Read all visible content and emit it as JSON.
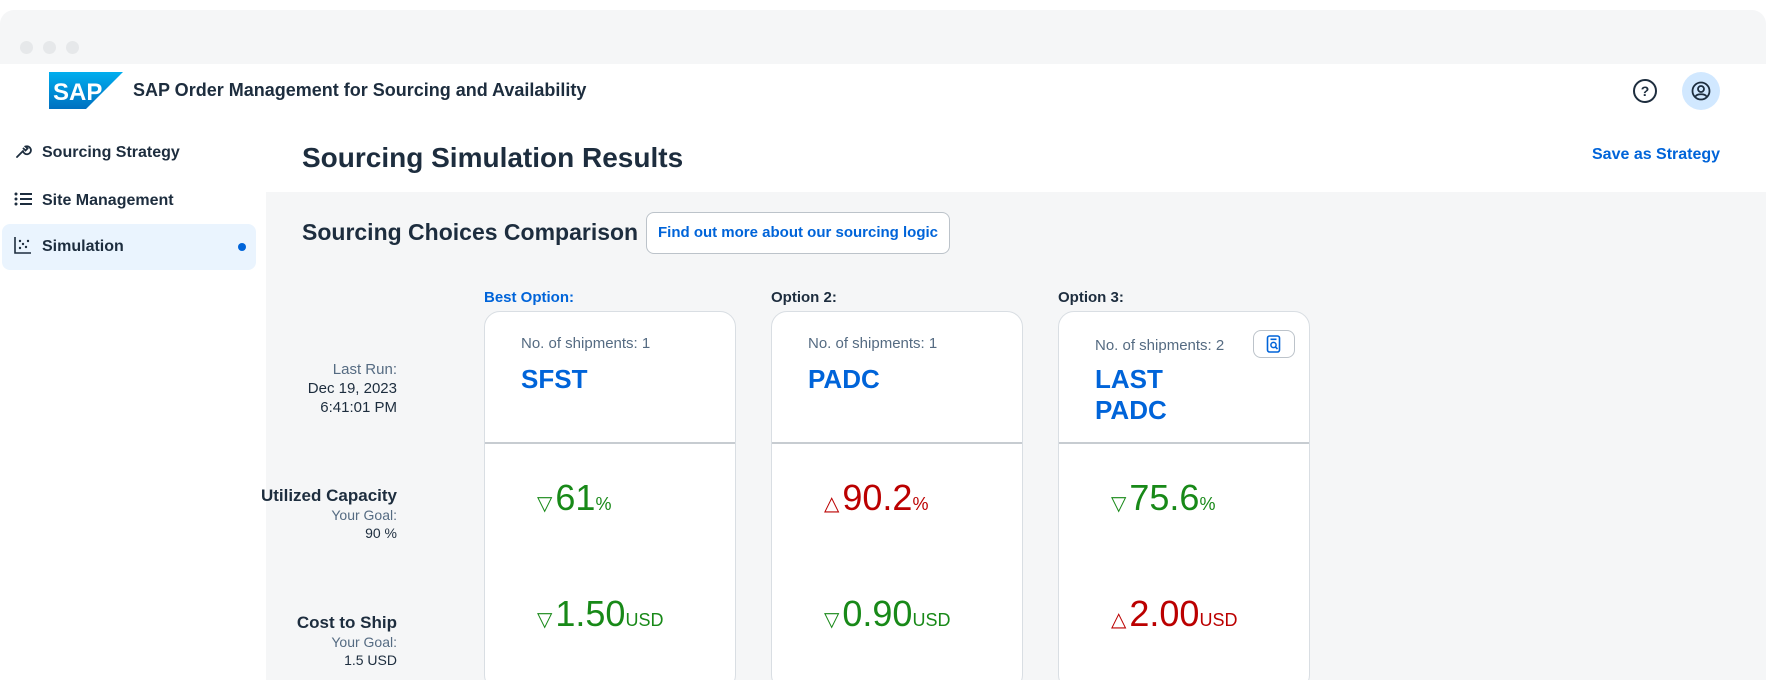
{
  "shell": {
    "logo_text": "SAP",
    "app_title": "SAP Order Management for Sourcing and Availability",
    "help_label": "?",
    "brand_color": "#0a6ed1"
  },
  "nav": {
    "items": [
      {
        "label": "Sourcing Strategy",
        "icon": "wrench-icon",
        "active": false
      },
      {
        "label": "Site Management",
        "icon": "list-icon",
        "active": false
      },
      {
        "label": "Simulation",
        "icon": "scatter-chart-icon",
        "active": true
      }
    ]
  },
  "page": {
    "title": "Sourcing Simulation Results",
    "save_label": "Save as Strategy"
  },
  "comparison": {
    "title": "Sourcing Choices Comparison",
    "info_button": "Find out more about our sourcing logic",
    "last_run": {
      "label": "Last Run:",
      "date": "Dec 19, 2023",
      "time": "6:41:01 PM"
    },
    "rows": {
      "capacity": {
        "label": "Utilized Capacity",
        "goal_label": "Your Goal:",
        "goal_value": "90 %"
      },
      "cost": {
        "label": "Cost to Ship",
        "goal_label": "Your Goal:",
        "goal_value": "1.5 USD"
      }
    },
    "options": [
      {
        "header": "Best Option:",
        "shipments": "No. of shipments: 1",
        "sites": [
          "SFST"
        ],
        "capacity": {
          "arrow": "▽",
          "value": "61",
          "unit": "%",
          "status": "good"
        },
        "cost": {
          "arrow": "▽",
          "value": "1.50",
          "unit": "USD",
          "status": "good"
        }
      },
      {
        "header": "Option 2:",
        "shipments": "No. of shipments: 1",
        "sites": [
          "PADC"
        ],
        "capacity": {
          "arrow": "△",
          "value": "90.2",
          "unit": "%",
          "status": "bad"
        },
        "cost": {
          "arrow": "▽",
          "value": "0.90",
          "unit": "USD",
          "status": "good"
        }
      },
      {
        "header": "Option 3:",
        "shipments": "No. of shipments: 2",
        "sites": [
          "LAST",
          "PADC"
        ],
        "capacity": {
          "arrow": "▽",
          "value": "75.6",
          "unit": "%",
          "status": "good"
        },
        "cost": {
          "arrow": "△",
          "value": "2.00",
          "unit": "USD",
          "status": "bad"
        }
      }
    ]
  },
  "colors": {
    "accent": "#0064d9",
    "good": "#188918",
    "bad": "#bb0000",
    "background": "#f5f6f7"
  }
}
